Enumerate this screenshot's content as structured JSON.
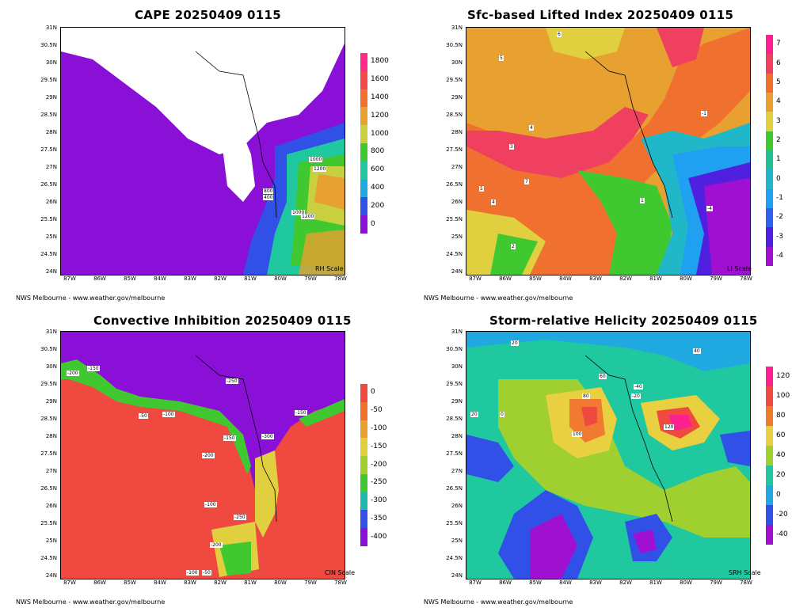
{
  "panels": [
    {
      "id": "cape",
      "title": "CAPE 20250409 0115",
      "scale_label": "RH Scale",
      "credit": "NWS Melbourne - www.weather.gov/melbourne",
      "colorbar": [
        {
          "label": "1800",
          "color": "#ff2a8a"
        },
        {
          "label": "1600",
          "color": "#f04a4a"
        },
        {
          "label": "1400",
          "color": "#f07030"
        },
        {
          "label": "1200",
          "color": "#e8a030"
        },
        {
          "label": "1000",
          "color": "#c8d040"
        },
        {
          "label": "800",
          "color": "#40c830"
        },
        {
          "label": "600",
          "color": "#20c8a0"
        },
        {
          "label": "400",
          "color": "#20a8e0"
        },
        {
          "label": "200",
          "color": "#3050e8"
        },
        {
          "label": "0",
          "color": "#8a10d8"
        }
      ],
      "contour_labels": [
        "1000",
        "1200",
        "1000",
        "1200",
        "800",
        "400"
      ]
    },
    {
      "id": "li",
      "title": "Sfc-based Lifted Index 20250409 0115",
      "scale_label": "LI Scale",
      "credit": "NWS Melbourne - www.weather.gov/melbourne",
      "colorbar": [
        {
          "label": "7",
          "color": "#ff2090"
        },
        {
          "label": "6",
          "color": "#f04060"
        },
        {
          "label": "5",
          "color": "#f07030"
        },
        {
          "label": "4",
          "color": "#e8a030"
        },
        {
          "label": "3",
          "color": "#e0d040"
        },
        {
          "label": "2",
          "color": "#40c830"
        },
        {
          "label": "1",
          "color": "#20c090"
        },
        {
          "label": "0",
          "color": "#20b8c8"
        },
        {
          "label": "-1",
          "color": "#20a0f0"
        },
        {
          "label": "-2",
          "color": "#3060f0"
        },
        {
          "label": "-3",
          "color": "#5020e0"
        },
        {
          "label": "-4",
          "color": "#a010d0"
        }
      ],
      "contour_labels": [
        "6",
        "5",
        "4",
        "3",
        "7",
        "5",
        "4",
        "2",
        "1",
        "-1",
        "-4"
      ]
    },
    {
      "id": "cin",
      "title": "Convective Inhibition 20250409 0115",
      "scale_label": "CIN Scale",
      "credit": "NWS Melbourne - www.weather.gov/melbourne",
      "colorbar": [
        {
          "label": "0",
          "color": "#f04a40"
        },
        {
          "label": "-50",
          "color": "#f07030"
        },
        {
          "label": "-100",
          "color": "#e8a030"
        },
        {
          "label": "-150",
          "color": "#e0d040"
        },
        {
          "label": "-200",
          "color": "#a0d030"
        },
        {
          "label": "-250",
          "color": "#40c830"
        },
        {
          "label": "-300",
          "color": "#20b8a8"
        },
        {
          "label": "-350",
          "color": "#3050e8"
        },
        {
          "label": "-400",
          "color": "#8a10d8"
        }
      ],
      "contour_labels": [
        "-150",
        "-200",
        "-250",
        "-50",
        "-100",
        "-150",
        "-200",
        "-300",
        "-100",
        "-150",
        "-250",
        "-200",
        "-100",
        "-50"
      ]
    },
    {
      "id": "srh",
      "title": "Storm-relative Helicity 20250409 0115",
      "scale_label": "SRH Scale",
      "credit": "NWS Melbourne - www.weather.gov/melbourne",
      "colorbar": [
        {
          "label": "120",
          "color": "#ff2090"
        },
        {
          "label": "100",
          "color": "#f04a40"
        },
        {
          "label": "80",
          "color": "#f07a30"
        },
        {
          "label": "60",
          "color": "#e8d040"
        },
        {
          "label": "40",
          "color": "#a0d030"
        },
        {
          "label": "20",
          "color": "#20c8a0"
        },
        {
          "label": "0",
          "color": "#20a8e0"
        },
        {
          "label": "-20",
          "color": "#3050e8"
        },
        {
          "label": "-40",
          "color": "#a010d0"
        }
      ],
      "contour_labels": [
        "20",
        "40",
        "60",
        "80",
        "100",
        "-20",
        "-40",
        "120",
        "0",
        "20"
      ]
    }
  ],
  "lat_ticks": [
    "31N",
    "30.5N",
    "30N",
    "29.5N",
    "29N",
    "28.5N",
    "28N",
    "27.5N",
    "27N",
    "26.5N",
    "26N",
    "25.5N",
    "25N",
    "24.5N",
    "24N"
  ],
  "lon_ticks": [
    "87W",
    "86W",
    "85W",
    "84W",
    "83W",
    "82W",
    "81W",
    "80W",
    "79W",
    "78W"
  ]
}
